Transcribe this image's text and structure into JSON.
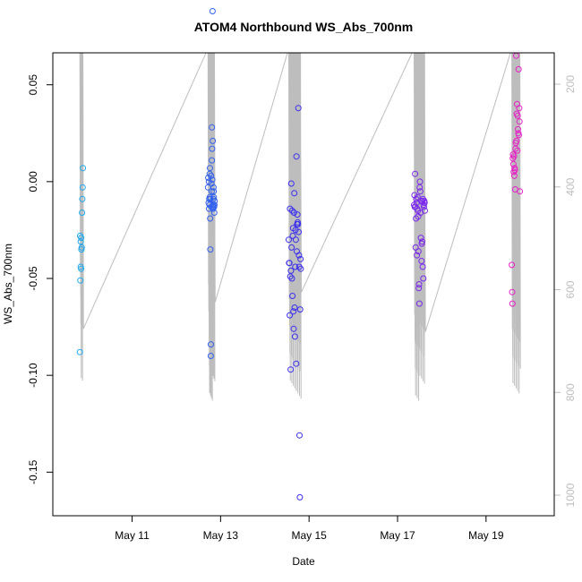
{
  "chart_data": {
    "type": "scatter",
    "title": "ATOM4 Northbound WS_Abs_700nm",
    "xlabel": "Date",
    "ylabel": "WS_Abs_700nm",
    "xlim": [
      "2018-05-09T05:00",
      "2018-05-20T13:00"
    ],
    "ylim": [
      -0.1725,
      0.0665
    ],
    "x_ticks": [
      {
        "value": "2018-05-11",
        "label": "May 11"
      },
      {
        "value": "2018-05-13",
        "label": "May 13"
      },
      {
        "value": "2018-05-15",
        "label": "May 15"
      },
      {
        "value": "2018-05-17",
        "label": "May 17"
      },
      {
        "value": "2018-05-19",
        "label": "May 19"
      }
    ],
    "y_ticks": [
      0.05,
      0.0,
      -0.05,
      -0.1,
      -0.15
    ],
    "y_tick_labels": [
      "0.05",
      "0.00",
      "-0.05",
      "-0.10",
      "-0.15"
    ],
    "y2_ticks": [
      200,
      400,
      600,
      800,
      1000
    ],
    "y2_lim": [
      1040,
      139
    ],
    "y2_color": "#bdbdbd",
    "grid": false,
    "series": [
      {
        "color": "#1fa8f0",
        "x": [
          "2018-05-09T19:40",
          "2018-05-09T19:50",
          "2018-05-09T19:55",
          "2018-05-09T20:05",
          "2018-05-09T20:10",
          "2018-05-09T20:20",
          "2018-05-09T20:25",
          "2018-05-09T20:30",
          "2018-05-09T20:40",
          "2018-05-09T20:50",
          "2018-05-09T21:00",
          "2018-05-09T21:10",
          "2018-05-09T21:20"
        ],
        "y": [
          -0.088,
          -0.028,
          -0.051,
          -0.044,
          -0.031,
          -0.045,
          -0.029,
          -0.035,
          -0.034,
          -0.016,
          -0.009,
          -0.003,
          0.007
        ]
      },
      {
        "color": "#3060f0",
        "x": [
          "2018-05-12T17:10",
          "2018-05-12T17:20",
          "2018-05-12T17:30",
          "2018-05-12T17:40",
          "2018-05-12T17:45",
          "2018-05-12T17:50",
          "2018-05-12T18:00",
          "2018-05-12T18:05",
          "2018-05-12T18:10",
          "2018-05-12T18:15",
          "2018-05-12T18:20",
          "2018-05-12T18:25",
          "2018-05-12T18:30",
          "2018-05-12T18:40",
          "2018-05-12T18:45",
          "2018-05-12T18:50",
          "2018-05-12T19:00",
          "2018-05-12T19:05",
          "2018-05-12T19:10",
          "2018-05-12T19:15",
          "2018-05-12T19:20",
          "2018-05-12T19:25",
          "2018-05-12T19:30",
          "2018-05-12T19:40",
          "2018-05-12T19:45",
          "2018-05-12T19:50",
          "2018-05-12T19:55",
          "2018-05-12T20:00",
          "2018-05-12T20:05",
          "2018-05-12T20:10",
          "2018-05-12T20:15",
          "2018-05-12T20:20",
          "2018-05-12T20:30",
          "2018-05-12T20:35",
          "2018-05-12T20:40",
          "2018-05-12T20:45"
        ],
        "y": [
          -0.003,
          0.002,
          -0.011,
          0.0,
          -0.014,
          -0.009,
          -0.012,
          0.004,
          -0.008,
          0.007,
          -0.019,
          -0.035,
          -0.009,
          -0.09,
          -0.084,
          0.003,
          -0.001,
          -0.013,
          -0.005,
          0.011,
          0.028,
          0.017,
          0.001,
          0.088,
          0.021,
          -0.013,
          -0.014,
          -0.012,
          -0.009,
          -0.003,
          -0.005,
          -0.008,
          -0.013,
          -0.016,
          -0.012,
          -0.01
        ]
      },
      {
        "color": "#3a2ef0",
        "x": [
          "2018-05-14T13:00",
          "2018-05-14T13:10",
          "2018-05-14T13:20",
          "2018-05-14T13:30",
          "2018-05-14T13:40",
          "2018-05-14T13:50",
          "2018-05-14T14:00",
          "2018-05-14T14:10",
          "2018-05-14T14:20",
          "2018-05-14T14:30",
          "2018-05-14T14:40",
          "2018-05-14T14:50",
          "2018-05-14T15:00",
          "2018-05-14T15:10",
          "2018-05-14T15:20",
          "2018-05-14T15:30",
          "2018-05-14T15:40",
          "2018-05-14T15:50",
          "2018-05-14T16:00",
          "2018-05-14T16:10",
          "2018-05-14T16:20",
          "2018-05-14T16:30",
          "2018-05-14T16:40",
          "2018-05-14T16:50",
          "2018-05-14T17:00",
          "2018-05-14T17:10",
          "2018-05-14T17:20",
          "2018-05-14T17:30",
          "2018-05-14T17:40",
          "2018-05-14T17:50",
          "2018-05-14T18:00",
          "2018-05-14T18:10",
          "2018-05-14T18:20",
          "2018-05-14T18:30",
          "2018-05-14T18:40",
          "2018-05-14T18:50",
          "2018-05-14T19:00",
          "2018-05-14T19:10",
          "2018-05-14T19:20",
          "2018-05-14T19:30"
        ],
        "y": [
          -0.03,
          -0.042,
          -0.042,
          -0.069,
          -0.014,
          -0.049,
          -0.097,
          -0.046,
          -0.001,
          -0.034,
          -0.05,
          -0.015,
          -0.059,
          -0.028,
          -0.024,
          -0.067,
          -0.076,
          -0.016,
          -0.006,
          -0.065,
          -0.08,
          -0.044,
          -0.025,
          -0.03,
          -0.094,
          0.013,
          -0.036,
          -0.022,
          -0.017,
          -0.021,
          -0.022,
          0.038,
          -0.026,
          -0.038,
          -0.044,
          -0.131,
          -0.163,
          -0.066,
          -0.04,
          -0.045
        ]
      },
      {
        "color": "#7a26f0",
        "x": [
          "2018-05-17T09:00",
          "2018-05-17T09:10",
          "2018-05-17T09:20",
          "2018-05-17T09:30",
          "2018-05-17T09:40",
          "2018-05-17T09:50",
          "2018-05-17T10:00",
          "2018-05-17T10:10",
          "2018-05-17T10:20",
          "2018-05-17T10:30",
          "2018-05-17T10:40",
          "2018-05-17T10:50",
          "2018-05-17T11:00",
          "2018-05-17T11:10",
          "2018-05-17T11:20",
          "2018-05-17T11:30",
          "2018-05-17T11:40",
          "2018-05-17T11:50",
          "2018-05-17T12:00",
          "2018-05-17T12:10",
          "2018-05-17T12:20",
          "2018-05-17T12:30",
          "2018-05-17T12:40",
          "2018-05-17T12:50",
          "2018-05-17T13:00",
          "2018-05-17T13:10",
          "2018-05-17T13:20",
          "2018-05-17T13:30",
          "2018-05-17T13:40",
          "2018-05-17T13:50",
          "2018-05-17T14:00",
          "2018-05-17T14:10",
          "2018-05-17T14:20",
          "2018-05-17T14:30",
          "2018-05-17T14:40",
          "2018-05-17T14:50"
        ],
        "y": [
          -0.012,
          -0.007,
          -0.013,
          0.004,
          -0.013,
          -0.034,
          -0.019,
          -0.009,
          -0.011,
          -0.038,
          -0.014,
          -0.008,
          -0.015,
          -0.018,
          -0.036,
          -0.055,
          -0.053,
          -0.063,
          -0.003,
          0.0,
          -0.005,
          -0.016,
          -0.029,
          -0.01,
          -0.041,
          -0.032,
          -0.031,
          -0.01,
          -0.044,
          -0.009,
          -0.05,
          -0.012,
          -0.013,
          -0.01,
          -0.011,
          -0.015
        ]
      },
      {
        "color": "#e81dc8",
        "x": [
          "2018-05-19T14:00",
          "2018-05-19T14:10",
          "2018-05-19T14:20",
          "2018-05-19T14:30",
          "2018-05-19T14:40",
          "2018-05-19T14:50",
          "2018-05-19T15:00",
          "2018-05-19T15:10",
          "2018-05-19T15:20",
          "2018-05-19T15:30",
          "2018-05-19T15:40",
          "2018-05-19T15:50",
          "2018-05-19T16:00",
          "2018-05-19T16:10",
          "2018-05-19T16:20",
          "2018-05-19T16:30",
          "2018-05-19T16:40",
          "2018-05-19T16:50",
          "2018-05-19T17:00",
          "2018-05-19T17:10",
          "2018-05-19T17:20",
          "2018-05-19T17:30",
          "2018-05-19T17:40",
          "2018-05-19T17:50",
          "2018-05-19T18:00",
          "2018-05-19T18:10",
          "2018-05-19T18:20"
        ],
        "y": [
          -0.043,
          -0.057,
          -0.063,
          0.012,
          0.014,
          0.009,
          0.005,
          0.013,
          0.003,
          0.007,
          0.006,
          -0.004,
          0.017,
          0.02,
          0.065,
          0.021,
          0.035,
          0.04,
          0.016,
          0.034,
          0.027,
          0.025,
          0.058,
          0.024,
          0.038,
          0.031,
          -0.005
        ]
      }
    ]
  }
}
